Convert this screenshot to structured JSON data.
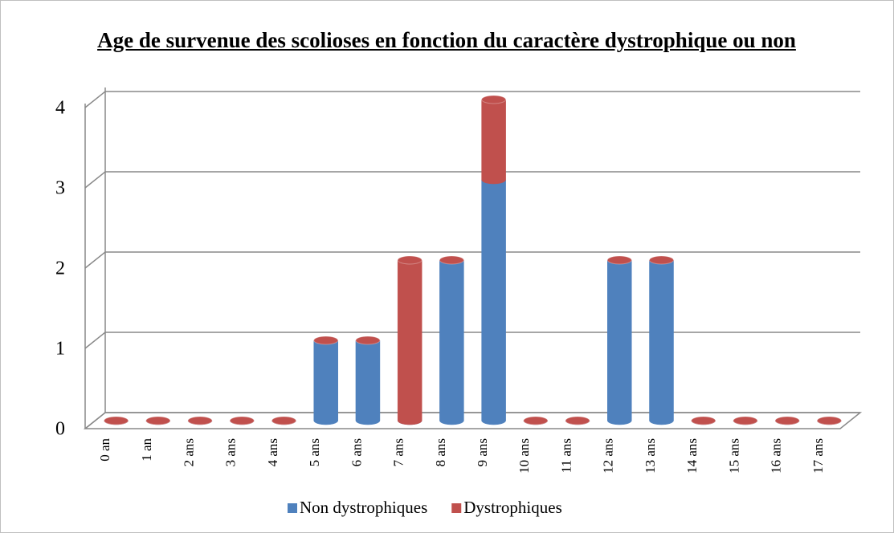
{
  "chart_data": {
    "type": "bar3d_stacked",
    "title": "Age de survenue des scolioses en fonction du caractère dystrophique ou non",
    "categories": [
      "0 an",
      "1 an",
      "2 ans",
      "3 ans",
      "4 ans",
      "5 ans",
      "6 ans",
      "7 ans",
      "8 ans",
      "9 ans",
      "10 ans",
      "11 ans",
      "12 ans",
      "13 ans",
      "14 ans",
      "15 ans",
      "16 ans",
      "17 ans"
    ],
    "series": [
      {
        "name": "Non dystrophiques",
        "color": "#4f81bd",
        "values": [
          0,
          0,
          0,
          0,
          0,
          1,
          1,
          0,
          2,
          3,
          0,
          0,
          2,
          2,
          0,
          0,
          0,
          0
        ]
      },
      {
        "name": "Dystrophiques",
        "color": "#c0504d",
        "values": [
          0,
          0,
          0,
          0,
          0,
          0,
          0,
          2,
          0,
          1,
          0,
          0,
          0,
          0,
          0,
          0,
          0,
          0
        ]
      }
    ],
    "ylim": [
      0,
      4
    ],
    "yticks": [
      0,
      1,
      2,
      3,
      4
    ],
    "grid": true,
    "legend": "bottom"
  }
}
